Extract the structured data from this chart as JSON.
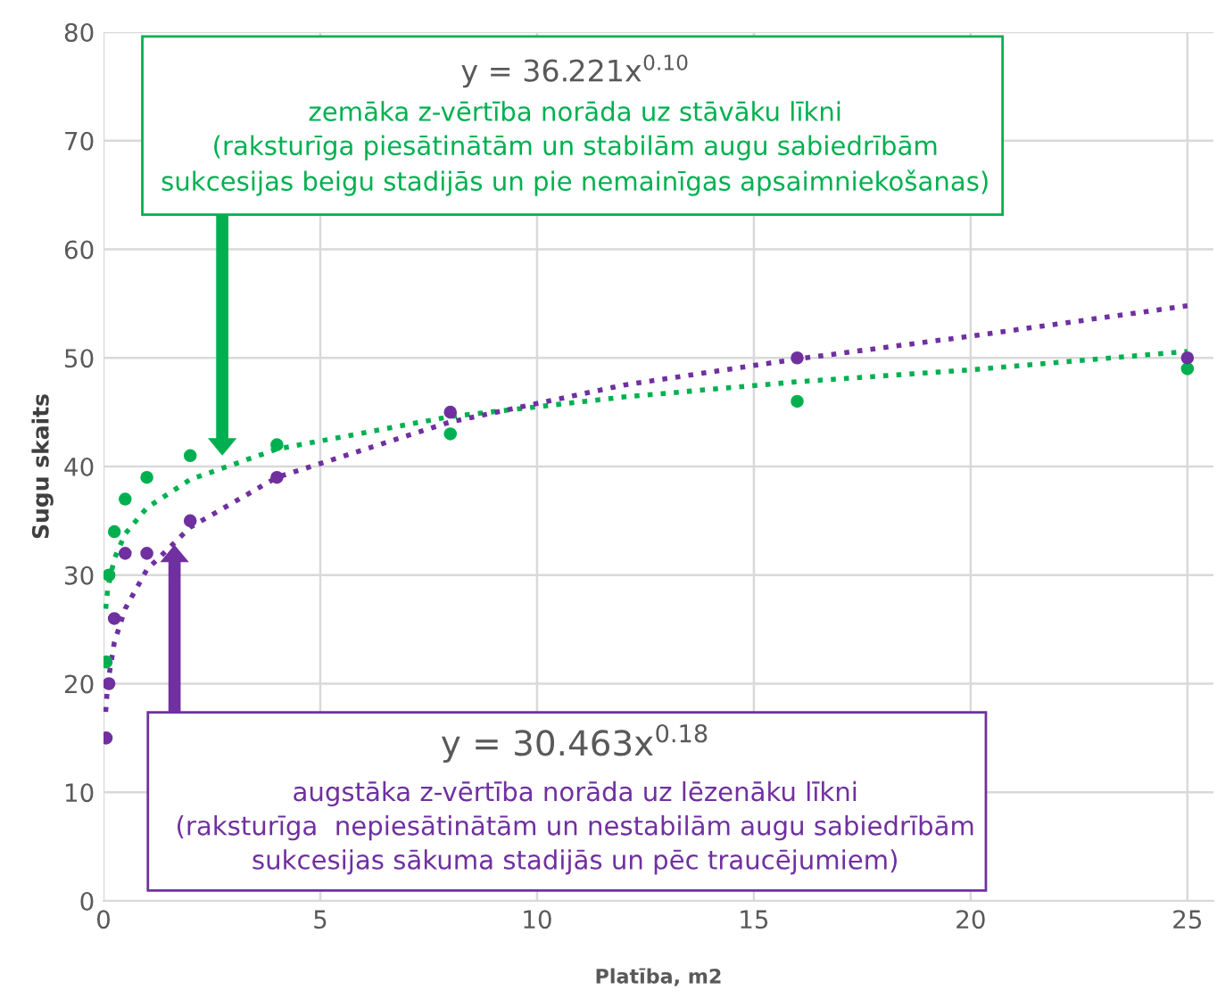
{
  "chart_data": {
    "type": "scatter",
    "xlabel": "Platība, m2",
    "ylabel": "Sugu skaits",
    "xlim": [
      0,
      25.6
    ],
    "ylim": [
      0,
      80
    ],
    "xticks": [
      0,
      5,
      10,
      15,
      20,
      25
    ],
    "yticks": [
      0,
      10,
      20,
      30,
      40,
      50,
      60,
      70,
      80
    ],
    "grid": true,
    "legend": false,
    "marker": "circle",
    "series": [
      {
        "color": "#00b050",
        "x": [
          0.0625,
          0.125,
          0.25,
          0.5,
          1,
          2,
          4,
          8,
          16,
          25
        ],
        "values": [
          22,
          30,
          34,
          37,
          39,
          41,
          42,
          43,
          46,
          49
        ]
      },
      {
        "color": "#7030a0",
        "x": [
          0.0625,
          0.125,
          0.25,
          0.5,
          1,
          2,
          4,
          8,
          16,
          25
        ],
        "values": [
          15,
          20,
          26,
          32,
          32,
          35,
          39,
          45,
          50,
          50
        ]
      },
      {
        "type": "line",
        "line_style": "dotted",
        "marker": "none",
        "color": "#00b050",
        "x": [
          0.05,
          0.1,
          0.25,
          0.5,
          1,
          2,
          4,
          8,
          12,
          16,
          20,
          25
        ],
        "values": [
          26.9,
          28.8,
          31.5,
          33.8,
          36.2,
          38.8,
          41.6,
          44.6,
          46.4,
          47.8,
          48.9,
          50.6
        ]
      },
      {
        "type": "line",
        "line_style": "dotted",
        "marker": "none",
        "color": "#7030a0",
        "x": [
          0.05,
          0.1,
          0.25,
          0.5,
          1,
          2,
          4,
          8,
          12,
          16,
          20,
          25
        ],
        "values": [
          17.4,
          20.1,
          23.8,
          26.9,
          30.5,
          34.4,
          39.0,
          44.1,
          47.5,
          49.9,
          52.0,
          54.8
        ]
      }
    ],
    "annotations": [
      "y = 36.221x$^{0.10}$",
      "zemāka z-vērtība norāda uz stāvāku līkni\n(raksturīga piesātinātām un stabilām augu sabiedrībām\nsukcesijas beigu stadijās un pie nemainīgas apsaimniekošanas)",
      "y = 30.463x$^{0.18}$",
      "augstāka z-vērtība norāda uz lēzenāku līkni\n(raksturīga  nepiesātinātām un nestabilām augu sabiedrībām\nsukcesijas sākuma stadijās un pēc traucējumiem)"
    ]
  }
}
